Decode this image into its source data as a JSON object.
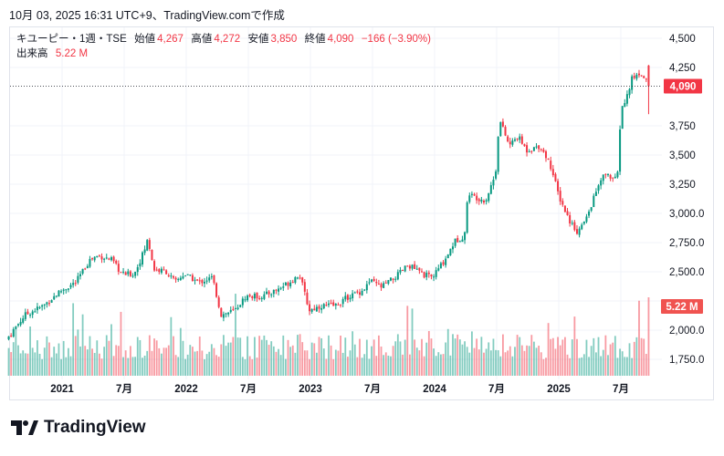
{
  "header": {
    "timestamp": "10月 03, 2025 16:31 UTC+9、TradingView.comで作成"
  },
  "legend": {
    "symbol": "キユーピー・1週・TSE",
    "open_label": "始値",
    "open": "4,267",
    "high_label": "高値",
    "high": "4,272",
    "low_label": "安値",
    "low": "3,850",
    "close_label": "終値",
    "close": "4,090",
    "change": "−166 (−3.90%)",
    "volume_label": "出来高",
    "volume": "5.22 M"
  },
  "footer": {
    "brand": "TradingView"
  },
  "colors": {
    "up": "#089981",
    "down": "#f23645",
    "grid": "#f0f3fa"
  },
  "chart_data": {
    "type": "candlestick",
    "title": "キユーピー・1週・TSE",
    "x_tick_labels": [
      {
        "t": 2021.0,
        "label": "2021"
      },
      {
        "t": 2021.5,
        "label": "7月"
      },
      {
        "t": 2022.0,
        "label": "2022"
      },
      {
        "t": 2022.5,
        "label": "7月"
      },
      {
        "t": 2023.0,
        "label": "2023"
      },
      {
        "t": 2023.5,
        "label": "7月"
      },
      {
        "t": 2024.0,
        "label": "2024"
      },
      {
        "t": 2024.5,
        "label": "7月"
      },
      {
        "t": 2025.0,
        "label": "2025"
      },
      {
        "t": 2025.5,
        "label": "7月"
      }
    ],
    "y_tick_labels": [
      {
        "v": 4500,
        "label": "4,500"
      },
      {
        "v": 4250,
        "label": "4,250"
      },
      {
        "v": 3750,
        "label": "3,750"
      },
      {
        "v": 3500,
        "label": "3,500"
      },
      {
        "v": 3250,
        "label": "3,250"
      },
      {
        "v": 3000,
        "label": "3,000.0"
      },
      {
        "v": 2750,
        "label": "2,750.0"
      },
      {
        "v": 2500,
        "label": "2,500.0"
      },
      {
        "v": 2000,
        "label": "2,000.0"
      },
      {
        "v": 1750,
        "label": "1,750.0"
      }
    ],
    "ylim": [
      1700,
      4560
    ],
    "xlim": [
      2020.55,
      2025.95
    ],
    "last_price_label": "4,090",
    "last_price": 4090,
    "last_volume_label": "5.22 M",
    "last_candle": {
      "open": 4267,
      "high": 4272,
      "low": 3850,
      "close": 4090
    },
    "close_anchors": [
      [
        2020.57,
        1920
      ],
      [
        2020.72,
        2130
      ],
      [
        2020.87,
        2210
      ],
      [
        2021.0,
        2330
      ],
      [
        2021.13,
        2410
      ],
      [
        2021.24,
        2600
      ],
      [
        2021.31,
        2640
      ],
      [
        2021.42,
        2600
      ],
      [
        2021.5,
        2480
      ],
      [
        2021.6,
        2480
      ],
      [
        2021.68,
        2680
      ],
      [
        2021.71,
        2780
      ],
      [
        2021.76,
        2520
      ],
      [
        2021.86,
        2500
      ],
      [
        2021.93,
        2410
      ],
      [
        2022.0,
        2480
      ],
      [
        2022.12,
        2410
      ],
      [
        2022.23,
        2450
      ],
      [
        2022.3,
        2130
      ],
      [
        2022.41,
        2170
      ],
      [
        2022.5,
        2290
      ],
      [
        2022.63,
        2290
      ],
      [
        2022.74,
        2340
      ],
      [
        2022.85,
        2410
      ],
      [
        2022.93,
        2480
      ],
      [
        2023.01,
        2170
      ],
      [
        2023.11,
        2210
      ],
      [
        2023.22,
        2210
      ],
      [
        2023.33,
        2290
      ],
      [
        2023.44,
        2340
      ],
      [
        2023.5,
        2420
      ],
      [
        2023.59,
        2370
      ],
      [
        2023.7,
        2450
      ],
      [
        2023.81,
        2560
      ],
      [
        2023.92,
        2480
      ],
      [
        2024.0,
        2450
      ],
      [
        2024.1,
        2600
      ],
      [
        2024.18,
        2760
      ],
      [
        2024.26,
        2810
      ],
      [
        2024.29,
        3190
      ],
      [
        2024.32,
        3150
      ],
      [
        2024.43,
        3110
      ],
      [
        2024.51,
        3340
      ],
      [
        2024.54,
        3810
      ],
      [
        2024.62,
        3580
      ],
      [
        2024.69,
        3660
      ],
      [
        2024.76,
        3540
      ],
      [
        2024.87,
        3580
      ],
      [
        2024.95,
        3420
      ],
      [
        2025.02,
        3150
      ],
      [
        2025.1,
        2950
      ],
      [
        2025.17,
        2840
      ],
      [
        2025.24,
        2950
      ],
      [
        2025.32,
        3190
      ],
      [
        2025.39,
        3340
      ],
      [
        2025.49,
        3280
      ],
      [
        2025.52,
        3890
      ],
      [
        2025.56,
        3970
      ],
      [
        2025.61,
        4160
      ],
      [
        2025.68,
        4200
      ],
      [
        2025.74,
        4120
      ],
      [
        2025.75,
        4267
      ]
    ]
  }
}
